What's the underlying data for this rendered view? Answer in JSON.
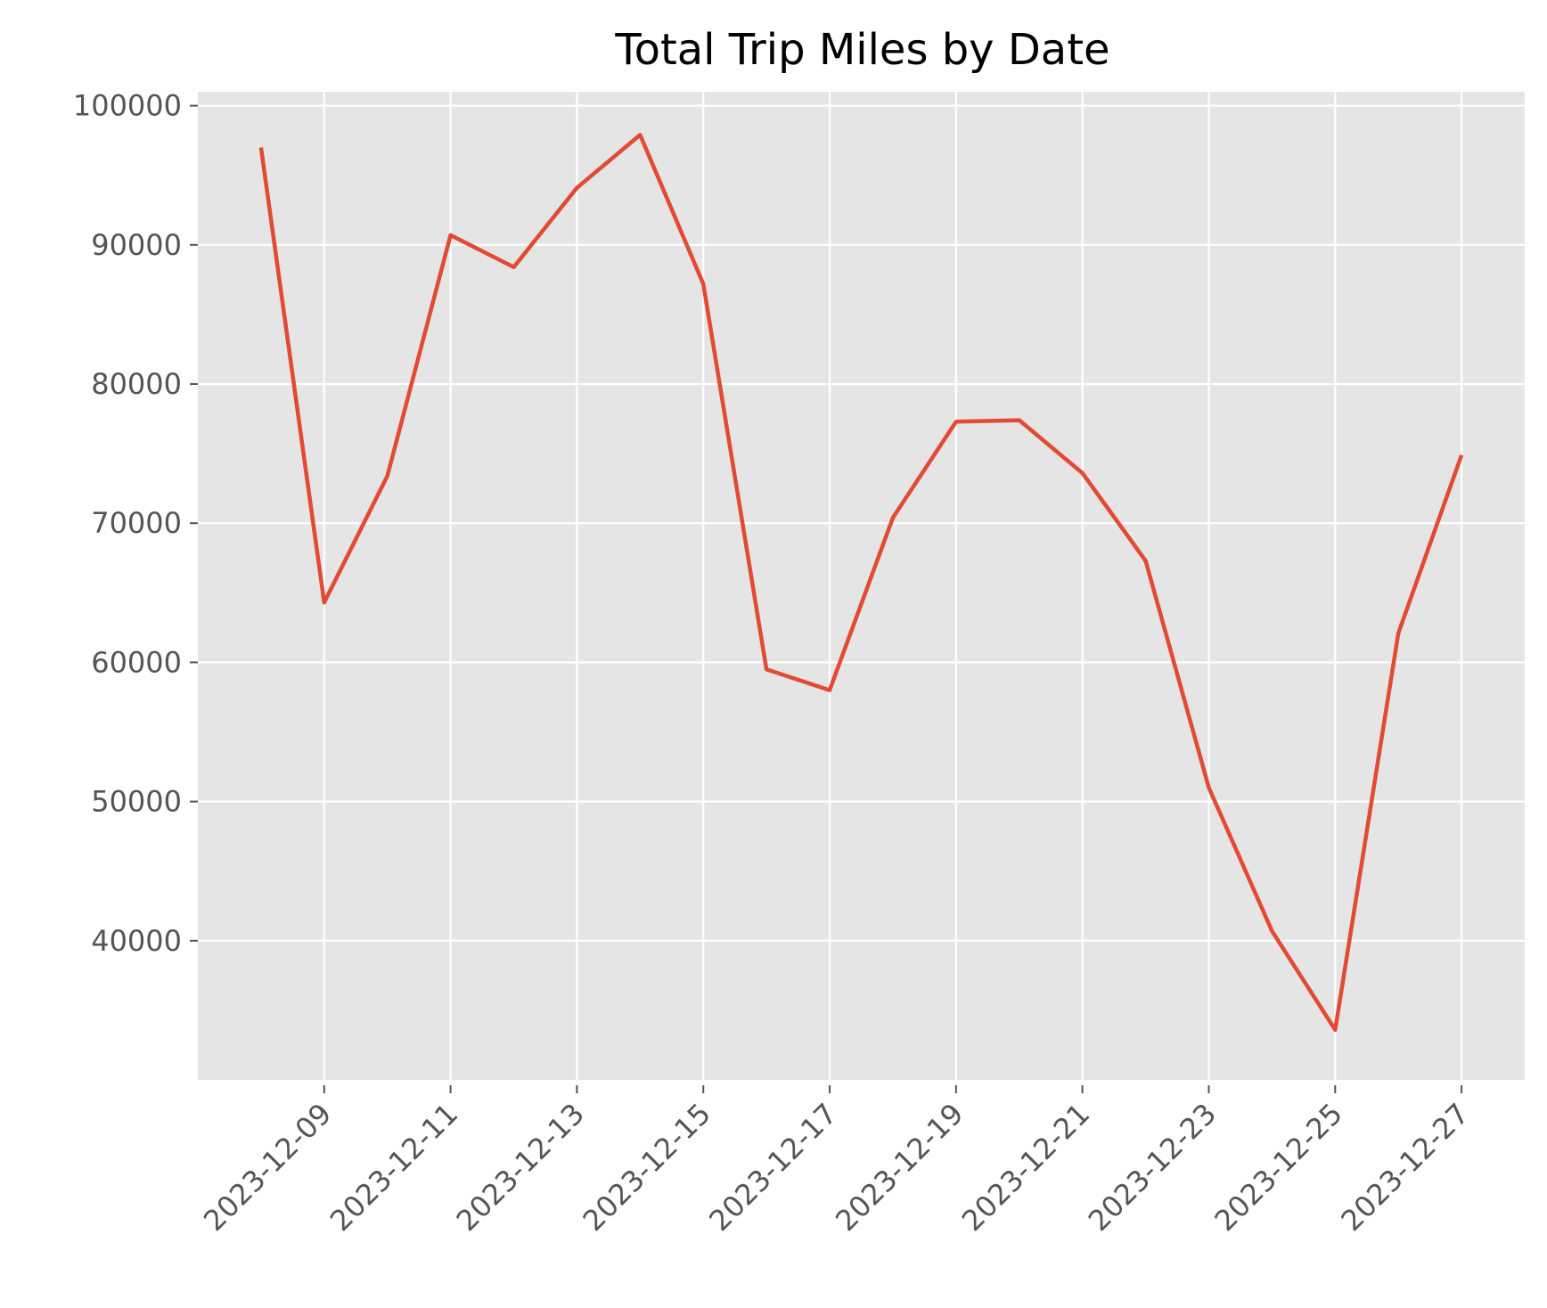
{
  "chart_data": {
    "type": "line",
    "title": "Total Trip Miles by Date",
    "xlabel": "",
    "ylabel": "",
    "x_tick_labels": [
      "2023-12-09",
      "2023-12-11",
      "2023-12-13",
      "2023-12-15",
      "2023-12-17",
      "2023-12-19",
      "2023-12-21",
      "2023-12-23",
      "2023-12-25",
      "2023-12-27"
    ],
    "y_tick_labels": [
      "40000",
      "50000",
      "60000",
      "70000",
      "80000",
      "90000",
      "100000"
    ],
    "ylim": [
      30000,
      101000
    ],
    "xlim": [
      "2023-12-07",
      "2023-12-28"
    ],
    "grid": true,
    "series": [
      {
        "color": "#e24a33",
        "x": [
          "2023-12-08",
          "2023-12-09",
          "2023-12-10",
          "2023-12-11",
          "2023-12-12",
          "2023-12-13",
          "2023-12-14",
          "2023-12-15",
          "2023-12-16",
          "2023-12-17",
          "2023-12-18",
          "2023-12-19",
          "2023-12-20",
          "2023-12-21",
          "2023-12-22",
          "2023-12-23",
          "2023-12-24",
          "2023-12-25",
          "2023-12-26",
          "2023-12-27"
        ],
        "values": [
          97000,
          64300,
          73400,
          90700,
          88400,
          94100,
          97900,
          87200,
          59500,
          58000,
          70400,
          77300,
          77400,
          73600,
          67300,
          51000,
          40700,
          33600,
          62100,
          74900
        ]
      }
    ]
  }
}
